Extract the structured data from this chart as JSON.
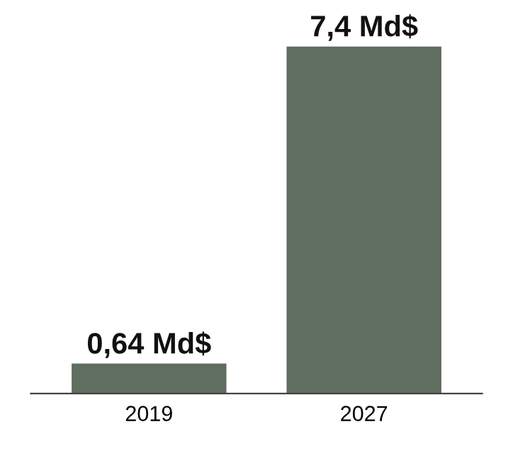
{
  "chart_data": {
    "type": "bar",
    "categories": [
      "2019",
      "2027"
    ],
    "values": [
      0.64,
      7.4
    ],
    "value_labels": [
      "0,64 Md$",
      "7,4 Md$"
    ],
    "color": "#5f6e5f",
    "grid": false,
    "legend": false
  }
}
